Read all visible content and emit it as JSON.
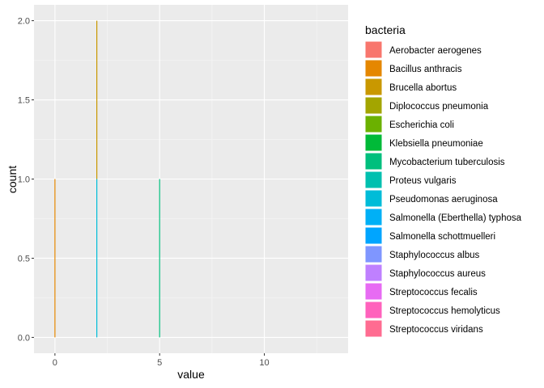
{
  "chart_data": {
    "type": "bar",
    "xlabel": "value",
    "ylabel": "count",
    "xlim": [
      -1,
      14
    ],
    "ylim": [
      -0.1,
      2.1
    ],
    "x_ticks": [
      0,
      5,
      10
    ],
    "y_ticks": [
      0.0,
      0.5,
      1.0,
      1.5,
      2.0
    ],
    "y_tick_labels": [
      "0.0",
      "0.5",
      "1.0",
      "1.5",
      "2.0"
    ],
    "grid": true,
    "legend_title": "bacteria",
    "legend_position": "right",
    "series": [
      {
        "name": "Aerobacter aerogenes",
        "color": "#F8766D"
      },
      {
        "name": "Bacillus anthracis",
        "color": "#E58700"
      },
      {
        "name": "Brucella abortus",
        "color": "#C99800"
      },
      {
        "name": "Diplococcus pneumonia",
        "color": "#A3A500"
      },
      {
        "name": "Escherichia coli",
        "color": "#6BB100"
      },
      {
        "name": "Klebsiella pneumoniae",
        "color": "#00BA38"
      },
      {
        "name": "Mycobacterium tuberculosis",
        "color": "#00BF7D"
      },
      {
        "name": "Proteus vulgaris",
        "color": "#00C0AF"
      },
      {
        "name": "Pseudomonas aeruginosa",
        "color": "#00BCD8"
      },
      {
        "name": "Salmonella (Eberthella) typhosa",
        "color": "#00B0F6"
      },
      {
        "name": "Salmonella schottmuelleri",
        "color": "#00A5FF"
      },
      {
        "name": "Staphylococcus albus",
        "color": "#7F96FF"
      },
      {
        "name": "Staphylococcus aureus",
        "color": "#BF80FF"
      },
      {
        "name": "Streptococcus fecalis",
        "color": "#E76BF3"
      },
      {
        "name": "Streptococcus hemolyticus",
        "color": "#FF62BC"
      },
      {
        "name": "Streptococcus viridans",
        "color": "#FF6C91"
      }
    ],
    "bars": [
      {
        "x": 0,
        "count": 1,
        "color": "#E58700"
      },
      {
        "x": 2,
        "count": 1,
        "color": "#00BCD8"
      },
      {
        "x": 2,
        "count": 1,
        "color": "#C99800"
      },
      {
        "x": 5,
        "count": 1,
        "color": "#00BF7D"
      }
    ]
  }
}
